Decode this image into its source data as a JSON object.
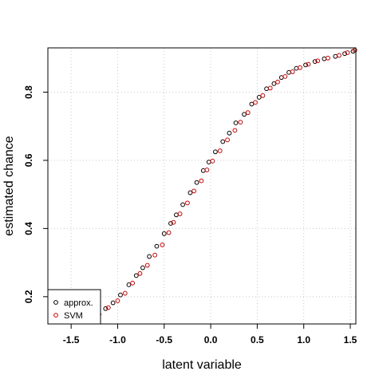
{
  "chart_data": {
    "type": "scatter",
    "xlabel": "latent variable",
    "ylabel": "estimated chance",
    "xlim": [
      -1.75,
      1.56
    ],
    "ylim": [
      0.12,
      0.93
    ],
    "x_ticks": [
      "-1.5",
      "-1.0",
      "-0.5",
      "0.0",
      "0.5",
      "1.0",
      "1.5"
    ],
    "y_ticks": [
      "0.2",
      "0.4",
      "0.6",
      "0.8"
    ],
    "grid": true,
    "legend": {
      "position": "bottom-left",
      "entries": [
        "approx.",
        "SVM"
      ]
    },
    "colors": {
      "approx.": "#000000",
      "SVM": "#cc0000"
    },
    "series": [
      {
        "name": "approx.",
        "x": [
          -1.21,
          -1.13,
          -1.05,
          -0.97,
          -0.88,
          -0.8,
          -0.73,
          -0.66,
          -0.58,
          -0.5,
          -0.43,
          -0.37,
          -0.3,
          -0.22,
          -0.15,
          -0.08,
          -0.02,
          0.05,
          0.13,
          0.2,
          0.27,
          0.36,
          0.44,
          0.52,
          0.6,
          0.68,
          0.76,
          0.84,
          0.92,
          1.02,
          1.12,
          1.22,
          1.34,
          1.44,
          1.53
        ],
        "y": [
          0.145,
          0.165,
          0.182,
          0.205,
          0.235,
          0.262,
          0.285,
          0.318,
          0.348,
          0.385,
          0.415,
          0.44,
          0.47,
          0.505,
          0.535,
          0.57,
          0.595,
          0.625,
          0.655,
          0.68,
          0.71,
          0.735,
          0.765,
          0.785,
          0.81,
          0.825,
          0.843,
          0.858,
          0.87,
          0.88,
          0.89,
          0.898,
          0.905,
          0.913,
          0.92
        ]
      },
      {
        "name": "SVM",
        "x": [
          -1.2,
          -1.1,
          -1.0,
          -0.92,
          -0.84,
          -0.76,
          -0.68,
          -0.6,
          -0.52,
          -0.45,
          -0.4,
          -0.33,
          -0.25,
          -0.18,
          -0.1,
          -0.04,
          0.02,
          0.1,
          0.18,
          0.26,
          0.32,
          0.4,
          0.48,
          0.56,
          0.64,
          0.72,
          0.8,
          0.88,
          0.96,
          1.05,
          1.15,
          1.26,
          1.38,
          1.47,
          1.55
        ],
        "y": [
          0.148,
          0.168,
          0.188,
          0.21,
          0.24,
          0.268,
          0.292,
          0.322,
          0.352,
          0.388,
          0.418,
          0.443,
          0.475,
          0.51,
          0.54,
          0.572,
          0.598,
          0.628,
          0.66,
          0.688,
          0.712,
          0.74,
          0.77,
          0.79,
          0.812,
          0.83,
          0.846,
          0.86,
          0.872,
          0.882,
          0.892,
          0.9,
          0.908,
          0.916,
          0.923
        ]
      }
    ]
  }
}
